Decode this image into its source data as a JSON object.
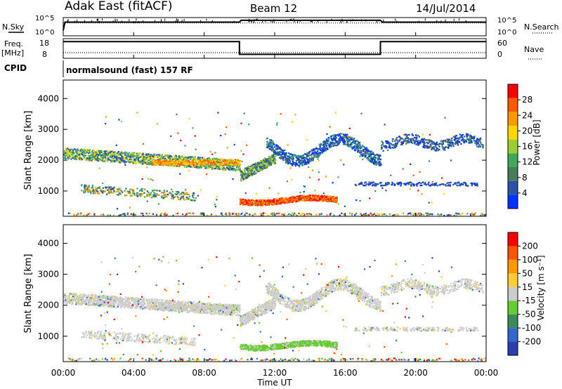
{
  "header": {
    "site": "Adak East (fitACF)",
    "beam": "Beam 12",
    "date": "14/Jul/2014"
  },
  "panels": {
    "nsky_label": "N.Sky",
    "nsearch_label": "N.Search",
    "nsky_ticks": [
      "10^5",
      "10^0"
    ],
    "nsearch_ticks": [
      "10^5",
      "10^0"
    ],
    "freq_label": "Freq.",
    "freq_unit": "[MHz]",
    "freq_ticks": [
      "18",
      "8"
    ],
    "nave_label": "Nave",
    "nave_ticks": [
      "60",
      "0"
    ],
    "cpid_label": "CPID",
    "cpid_value": "normalsound (fast) 157 RF"
  },
  "colors": {
    "power": [
      "#0033ff",
      "#2a52a8",
      "#4a7b5a",
      "#3fa85a",
      "#9acd32",
      "#ffd700",
      "#ff9900",
      "#ff5a00",
      "#ff0000"
    ],
    "velocity": [
      "#2b3fb0",
      "#3366cc",
      "#3a8a5a",
      "#66cc33",
      "#cccccc",
      "#ffcc33",
      "#ff9900",
      "#ff5500",
      "#ff0000"
    ]
  },
  "chart_data": [
    {
      "type": "line",
      "name": "nsky-nsearch",
      "x_unit": "hours UT",
      "series": [
        {
          "name": "N.Sky",
          "x": [
            0,
            0.1,
            10,
            10.1,
            18,
            18.1,
            24
          ],
          "y": [
            0.3,
            0.75,
            0.75,
            0.85,
            0.85,
            0.75,
            0.75
          ]
        },
        {
          "name": "N.Search",
          "x": [
            0,
            24
          ],
          "y": [
            0.7,
            0.7
          ]
        }
      ]
    },
    {
      "type": "line",
      "name": "freq-nave",
      "x_unit": "hours UT",
      "series": [
        {
          "name": "Freq.",
          "x": [
            0,
            10,
            10,
            18,
            18,
            24
          ],
          "y": [
            16.5,
            16.5,
            10,
            10,
            16.5,
            16.5
          ]
        },
        {
          "name": "Nave",
          "x": [
            0,
            24
          ],
          "y": [
            10,
            10
          ]
        }
      ]
    },
    {
      "type": "heatmap",
      "name": "power",
      "ylabel": "Slant Range [km]",
      "yticks": [
        "1000",
        "2000",
        "3000",
        "4000"
      ],
      "ylim": [
        180,
        4600
      ],
      "colorbar": {
        "label": "Power [dB]",
        "ticks": [
          "28",
          "24",
          "20",
          "16",
          "12",
          "8",
          "4"
        ]
      }
    },
    {
      "type": "heatmap",
      "name": "velocity",
      "ylabel": "Slant Range [km]",
      "yticks": [
        "1000",
        "2000",
        "3000",
        "4000"
      ],
      "ylim": [
        180,
        4600
      ],
      "xlabel": "Time UT",
      "xticks": [
        "00:00",
        "04:00",
        "08:00",
        "12:00",
        "16:00",
        "20:00",
        "00:00"
      ],
      "colorbar": {
        "label": "Velocity [m s⁻¹]",
        "ticks": [
          "200",
          "100",
          "50",
          "15",
          "-15",
          "-50",
          "-100",
          "-200"
        ]
      }
    }
  ]
}
